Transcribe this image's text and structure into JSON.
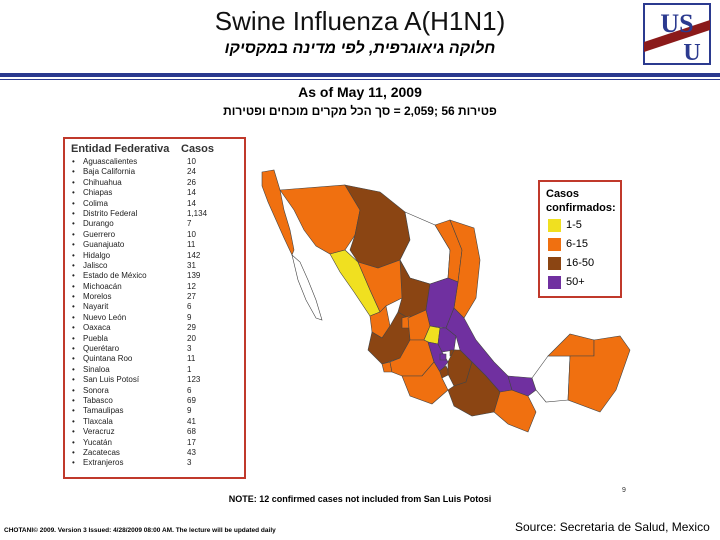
{
  "slide": {
    "title": "Swine Influenza A(H1N1)",
    "subtitle": "חלוקה גיאוגרפית, לפי מדינה במקסיקו",
    "as_of": "As of May 11, 2009",
    "total_line": "פטירות 56 ;2,059 = סך הכל מקרים מוכחים ופטירות",
    "logo_letters": "USU",
    "note": "NOTE: 12 confirmed cases not included from San Luis Potosi",
    "footer_left": "CHOTANI© 2009. Version 3 Issued: 4/28/2009 08:00 AM. The lecture will be updated daily",
    "source": "Source: Secretaria de Salud, Mexico",
    "small_mark": "9"
  },
  "colors": {
    "rule": "#2b3a8f",
    "box_border": "#c0392b",
    "cat_1_5": "#f0e020",
    "cat_6_15": "#f07010",
    "cat_16_50": "#8b4513",
    "cat_50_plus": "#7030a0",
    "no_cases": "#ffffff"
  },
  "table": {
    "header_state": "Entidad Federativa",
    "header_cases": "Casos",
    "rows": [
      {
        "state": "Aguascalientes",
        "cases": "10"
      },
      {
        "state": "Baja California",
        "cases": "24"
      },
      {
        "state": "Chihuahua",
        "cases": "26"
      },
      {
        "state": "Chiapas",
        "cases": "14"
      },
      {
        "state": "Colima",
        "cases": "14"
      },
      {
        "state": "Distrito Federal",
        "cases": "1,134"
      },
      {
        "state": "Durango",
        "cases": "7"
      },
      {
        "state": "Guerrero",
        "cases": "10"
      },
      {
        "state": "Guanajuato",
        "cases": "11"
      },
      {
        "state": "Hidalgo",
        "cases": "142"
      },
      {
        "state": "Jalisco",
        "cases": "31"
      },
      {
        "state": "Estado de México",
        "cases": "139"
      },
      {
        "state": "Michoacán",
        "cases": "12"
      },
      {
        "state": "Morelos",
        "cases": "27"
      },
      {
        "state": "Nayarit",
        "cases": "6"
      },
      {
        "state": "Nuevo León",
        "cases": "9"
      },
      {
        "state": "Oaxaca",
        "cases": "29"
      },
      {
        "state": "Puebla",
        "cases": "20"
      },
      {
        "state": "Querétaro",
        "cases": "3"
      },
      {
        "state": "Quintana Roo",
        "cases": "11"
      },
      {
        "state": "Sinaloa",
        "cases": "1"
      },
      {
        "state": "San Luis Potosí",
        "cases": "123"
      },
      {
        "state": "Sonora",
        "cases": "6"
      },
      {
        "state": "Tabasco",
        "cases": "69"
      },
      {
        "state": "Tamaulipas",
        "cases": "9"
      },
      {
        "state": "Tlaxcala",
        "cases": "41"
      },
      {
        "state": "Veracruz",
        "cases": "68"
      },
      {
        "state": "Yucatán",
        "cases": "17"
      },
      {
        "state": "Zacatecas",
        "cases": "43"
      },
      {
        "state": "Extranjeros",
        "cases": "3"
      }
    ]
  },
  "legend": {
    "title": "Casos confirmados:",
    "items": [
      {
        "label": "1-5",
        "color": "#f0e020"
      },
      {
        "label": "6-15",
        "color": "#f07010"
      },
      {
        "label": "16-50",
        "color": "#8b4513"
      },
      {
        "label": "50+",
        "color": "#7030a0"
      }
    ]
  }
}
